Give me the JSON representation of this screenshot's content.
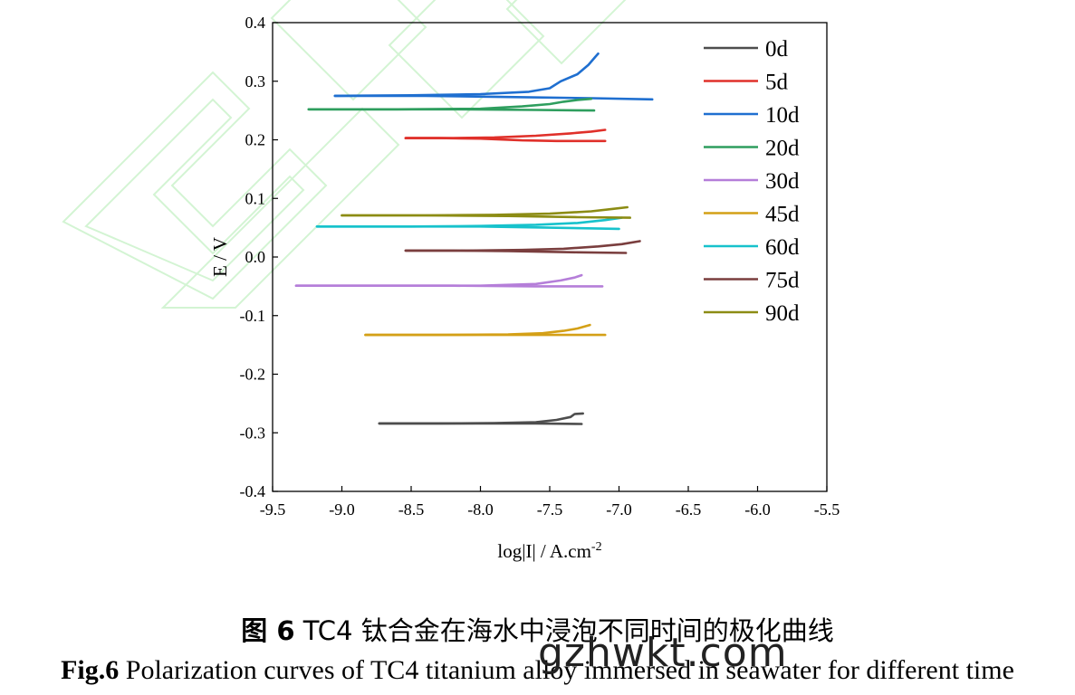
{
  "chart_data": {
    "type": "line",
    "title": "",
    "xlabel": "log|I| / A.cm",
    "xlabel_sup": "-2",
    "ylabel": "E / V",
    "xlim": [
      -9.5,
      -5.5
    ],
    "ylim": [
      -0.4,
      0.4
    ],
    "x_ticks": [
      -9.5,
      -9.0,
      -8.5,
      -8.0,
      -7.5,
      -7.0,
      -6.5,
      -6.0,
      -5.5
    ],
    "x_tick_labels": [
      "-9.5",
      "-9.0",
      "-8.5",
      "-8.0",
      "-7.5",
      "-7.0",
      "-6.5",
      "-6.0",
      "-5.5"
    ],
    "y_ticks": [
      -0.4,
      -0.3,
      -0.2,
      -0.1,
      0.0,
      0.1,
      0.2,
      0.3,
      0.4
    ],
    "y_tick_labels": [
      "-0.4",
      "-0.3",
      "-0.2",
      "-0.1",
      "0.0",
      "0.1",
      "0.2",
      "0.3",
      "0.4"
    ],
    "grid": false,
    "legend_position": "top-right",
    "series": [
      {
        "name": "0d",
        "color": "#4d4d4d",
        "cathodic": [
          [
            -7.27,
            -0.285
          ],
          [
            -7.6,
            -0.284
          ],
          [
            -8.0,
            -0.284
          ],
          [
            -8.4,
            -0.284
          ],
          [
            -8.73,
            -0.284
          ]
        ],
        "anodic": [
          [
            -8.73,
            -0.284
          ],
          [
            -8.3,
            -0.284
          ],
          [
            -7.9,
            -0.2835
          ],
          [
            -7.6,
            -0.282
          ],
          [
            -7.45,
            -0.278
          ],
          [
            -7.35,
            -0.273
          ],
          [
            -7.32,
            -0.268
          ],
          [
            -7.26,
            -0.267
          ]
        ]
      },
      {
        "name": "5d",
        "color": "#e0302a",
        "cathodic": [
          [
            -7.1,
            0.198
          ],
          [
            -7.45,
            0.198
          ],
          [
            -7.7,
            0.199
          ],
          [
            -8.0,
            0.202
          ],
          [
            -8.3,
            0.203
          ],
          [
            -8.54,
            0.203
          ]
        ],
        "anodic": [
          [
            -8.54,
            0.203
          ],
          [
            -8.2,
            0.203
          ],
          [
            -7.9,
            0.204
          ],
          [
            -7.6,
            0.207
          ],
          [
            -7.35,
            0.211
          ],
          [
            -7.2,
            0.214
          ],
          [
            -7.1,
            0.217
          ]
        ]
      },
      {
        "name": "10d",
        "color": "#1f6fd0",
        "cathodic": [
          [
            -6.76,
            0.269
          ],
          [
            -7.2,
            0.271
          ],
          [
            -7.8,
            0.273
          ],
          [
            -8.4,
            0.275
          ],
          [
            -9.05,
            0.275
          ]
        ],
        "anodic": [
          [
            -9.05,
            0.275
          ],
          [
            -8.5,
            0.276
          ],
          [
            -8.0,
            0.278
          ],
          [
            -7.65,
            0.282
          ],
          [
            -7.5,
            0.288
          ],
          [
            -7.42,
            0.3
          ],
          [
            -7.3,
            0.312
          ],
          [
            -7.22,
            0.328
          ],
          [
            -7.17,
            0.342
          ],
          [
            -7.15,
            0.347
          ]
        ]
      },
      {
        "name": "20d",
        "color": "#2e9e5e",
        "cathodic": [
          [
            -7.18,
            0.25
          ],
          [
            -7.6,
            0.251
          ],
          [
            -8.2,
            0.252
          ],
          [
            -8.8,
            0.252
          ],
          [
            -9.24,
            0.252
          ]
        ],
        "anodic": [
          [
            -9.24,
            0.252
          ],
          [
            -8.6,
            0.252
          ],
          [
            -8.0,
            0.253
          ],
          [
            -7.7,
            0.257
          ],
          [
            -7.5,
            0.261
          ],
          [
            -7.4,
            0.265
          ],
          [
            -7.3,
            0.268
          ],
          [
            -7.2,
            0.27
          ]
        ]
      },
      {
        "name": "30d",
        "color": "#b57ed9",
        "cathodic": [
          [
            -7.12,
            -0.05
          ],
          [
            -7.6,
            -0.05
          ],
          [
            -8.2,
            -0.049
          ],
          [
            -8.8,
            -0.049
          ],
          [
            -9.33,
            -0.049
          ]
        ],
        "anodic": [
          [
            -9.33,
            -0.049
          ],
          [
            -8.6,
            -0.049
          ],
          [
            -8.0,
            -0.049
          ],
          [
            -7.6,
            -0.046
          ],
          [
            -7.42,
            -0.04
          ],
          [
            -7.32,
            -0.035
          ],
          [
            -7.27,
            -0.031
          ]
        ]
      },
      {
        "name": "45d",
        "color": "#d4a017",
        "cathodic": [
          [
            -7.1,
            -0.133
          ],
          [
            -7.5,
            -0.133
          ],
          [
            -8.0,
            -0.133
          ],
          [
            -8.4,
            -0.133
          ],
          [
            -8.83,
            -0.133
          ]
        ],
        "anodic": [
          [
            -8.83,
            -0.133
          ],
          [
            -8.3,
            -0.133
          ],
          [
            -7.8,
            -0.132
          ],
          [
            -7.55,
            -0.13
          ],
          [
            -7.4,
            -0.126
          ],
          [
            -7.3,
            -0.122
          ],
          [
            -7.21,
            -0.116
          ]
        ]
      },
      {
        "name": "60d",
        "color": "#17c2cc",
        "cathodic": [
          [
            -7.0,
            0.048
          ],
          [
            -7.5,
            0.05
          ],
          [
            -8.0,
            0.052
          ],
          [
            -8.6,
            0.052
          ],
          [
            -9.18,
            0.052
          ]
        ],
        "anodic": [
          [
            -9.18,
            0.052
          ],
          [
            -8.5,
            0.052
          ],
          [
            -8.0,
            0.053
          ],
          [
            -7.6,
            0.055
          ],
          [
            -7.3,
            0.058
          ],
          [
            -7.1,
            0.063
          ],
          [
            -6.98,
            0.067
          ]
        ]
      },
      {
        "name": "75d",
        "color": "#7a3e3e",
        "cathodic": [
          [
            -6.95,
            0.007
          ],
          [
            -7.3,
            0.008
          ],
          [
            -7.8,
            0.01
          ],
          [
            -8.2,
            0.011
          ],
          [
            -8.54,
            0.011
          ]
        ],
        "anodic": [
          [
            -8.54,
            0.011
          ],
          [
            -8.1,
            0.011
          ],
          [
            -7.7,
            0.012
          ],
          [
            -7.4,
            0.014
          ],
          [
            -7.15,
            0.018
          ],
          [
            -6.98,
            0.022
          ],
          [
            -6.85,
            0.027
          ]
        ]
      },
      {
        "name": "90d",
        "color": "#8c8c14",
        "cathodic": [
          [
            -6.92,
            0.067
          ],
          [
            -7.3,
            0.068
          ],
          [
            -7.8,
            0.07
          ],
          [
            -8.4,
            0.071
          ],
          [
            -9.0,
            0.071
          ]
        ],
        "anodic": [
          [
            -9.0,
            0.071
          ],
          [
            -8.4,
            0.071
          ],
          [
            -7.9,
            0.072
          ],
          [
            -7.5,
            0.074
          ],
          [
            -7.2,
            0.078
          ],
          [
            -7.05,
            0.082
          ],
          [
            -6.94,
            0.085
          ]
        ]
      }
    ]
  },
  "caption": {
    "cn_label": "图 6",
    "cn_text": " TC4 钛合金在海水中浸泡不同时间的极化曲线",
    "en_label": "Fig.6",
    "en_text": " Polarization curves of TC4 titanium alloy immersed in seawater for different time"
  },
  "watermark": "gzhwkt.com"
}
